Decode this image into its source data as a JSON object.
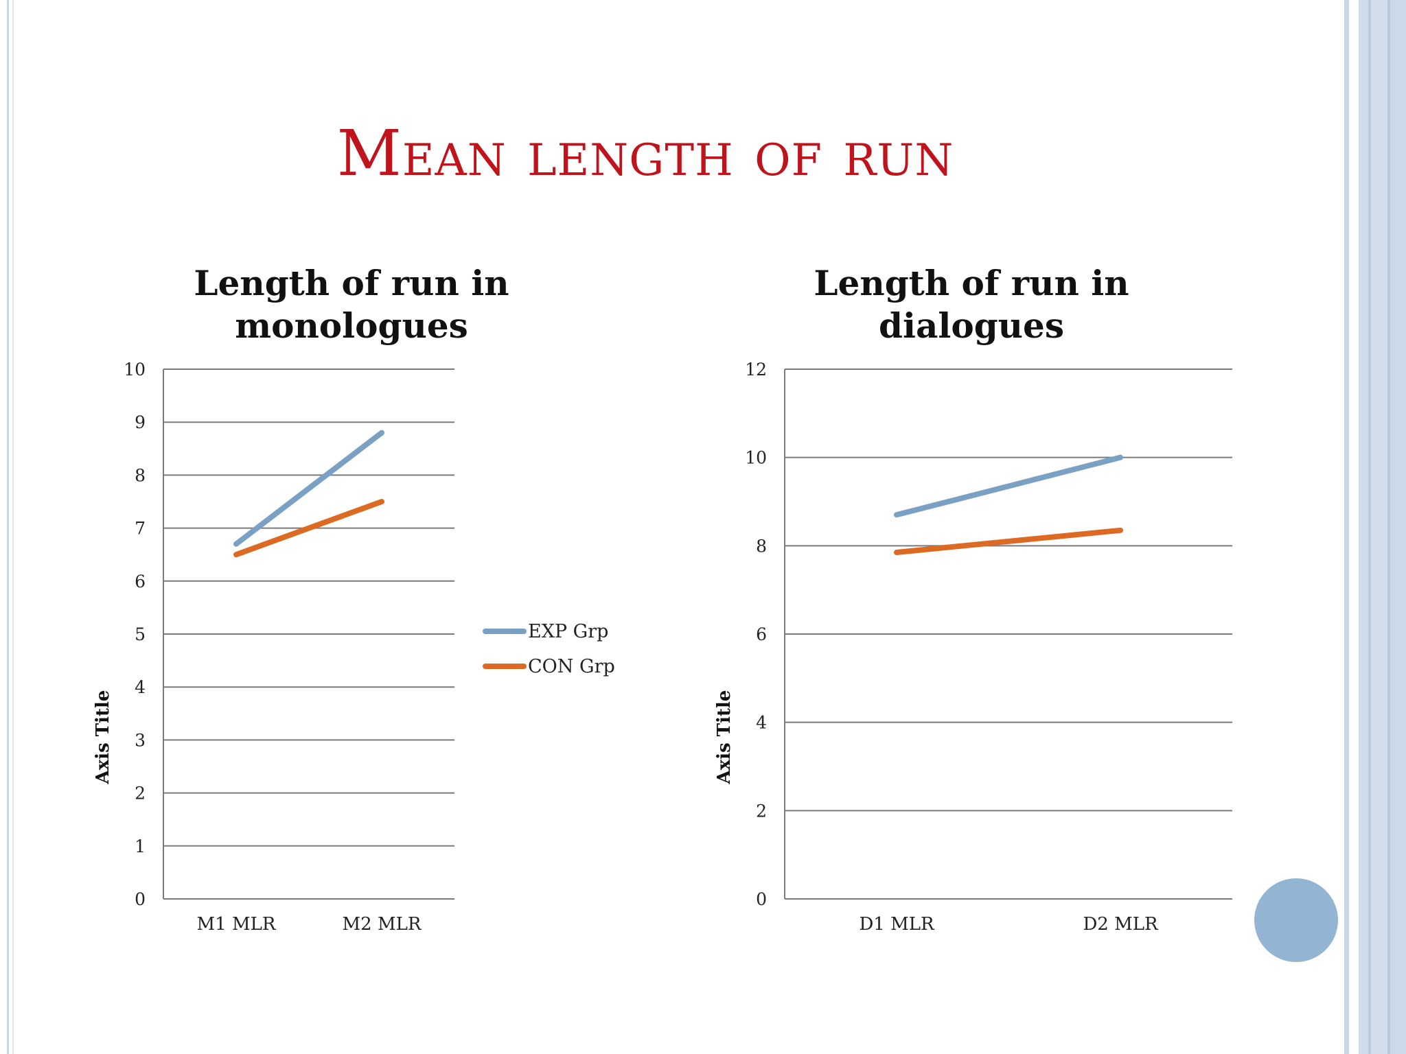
{
  "slide": {
    "title": "Mean length of run"
  },
  "colors": {
    "title": "#c0141c",
    "exp": "#7aa0c4",
    "con": "#dd6a23",
    "grid": "#7a7a7a",
    "frame": "#c7d6e6",
    "circle": "#93b4d3"
  },
  "legend": {
    "placement": "right of left chart",
    "items": [
      {
        "label": "EXP Grp",
        "color": "#7aa0c4"
      },
      {
        "label": "CON Grp",
        "color": "#dd6a23"
      }
    ]
  },
  "chart_data": [
    {
      "type": "line",
      "title": "Length of run in monologues",
      "title_lines": [
        "Length of run in",
        "monologues"
      ],
      "categories": [
        "M1 MLR",
        "M2 MLR"
      ],
      "ylabel": "Axis Title",
      "ylim": [
        0,
        10
      ],
      "yticks": [
        "0",
        "1",
        "2",
        "3",
        "4",
        "5",
        "6",
        "7",
        "8",
        "9",
        "10"
      ],
      "grid": true,
      "series": [
        {
          "name": "EXP Grp",
          "values": [
            6.7,
            8.8
          ]
        },
        {
          "name": "CON Grp",
          "values": [
            6.5,
            7.5
          ]
        }
      ]
    },
    {
      "type": "line",
      "title": "Length of run in dialogues",
      "title_lines": [
        "Length of run in",
        "dialogues"
      ],
      "categories": [
        "D1 MLR",
        "D2 MLR"
      ],
      "ylabel": "Axis Title",
      "ylim": [
        0,
        12
      ],
      "yticks": [
        "0",
        "2",
        "4",
        "6",
        "8",
        "10",
        "12"
      ],
      "grid": true,
      "series": [
        {
          "name": "EXP Grp",
          "values": [
            8.7,
            10.0
          ]
        },
        {
          "name": "CON Grp",
          "values": [
            7.85,
            8.35
          ]
        }
      ]
    }
  ]
}
